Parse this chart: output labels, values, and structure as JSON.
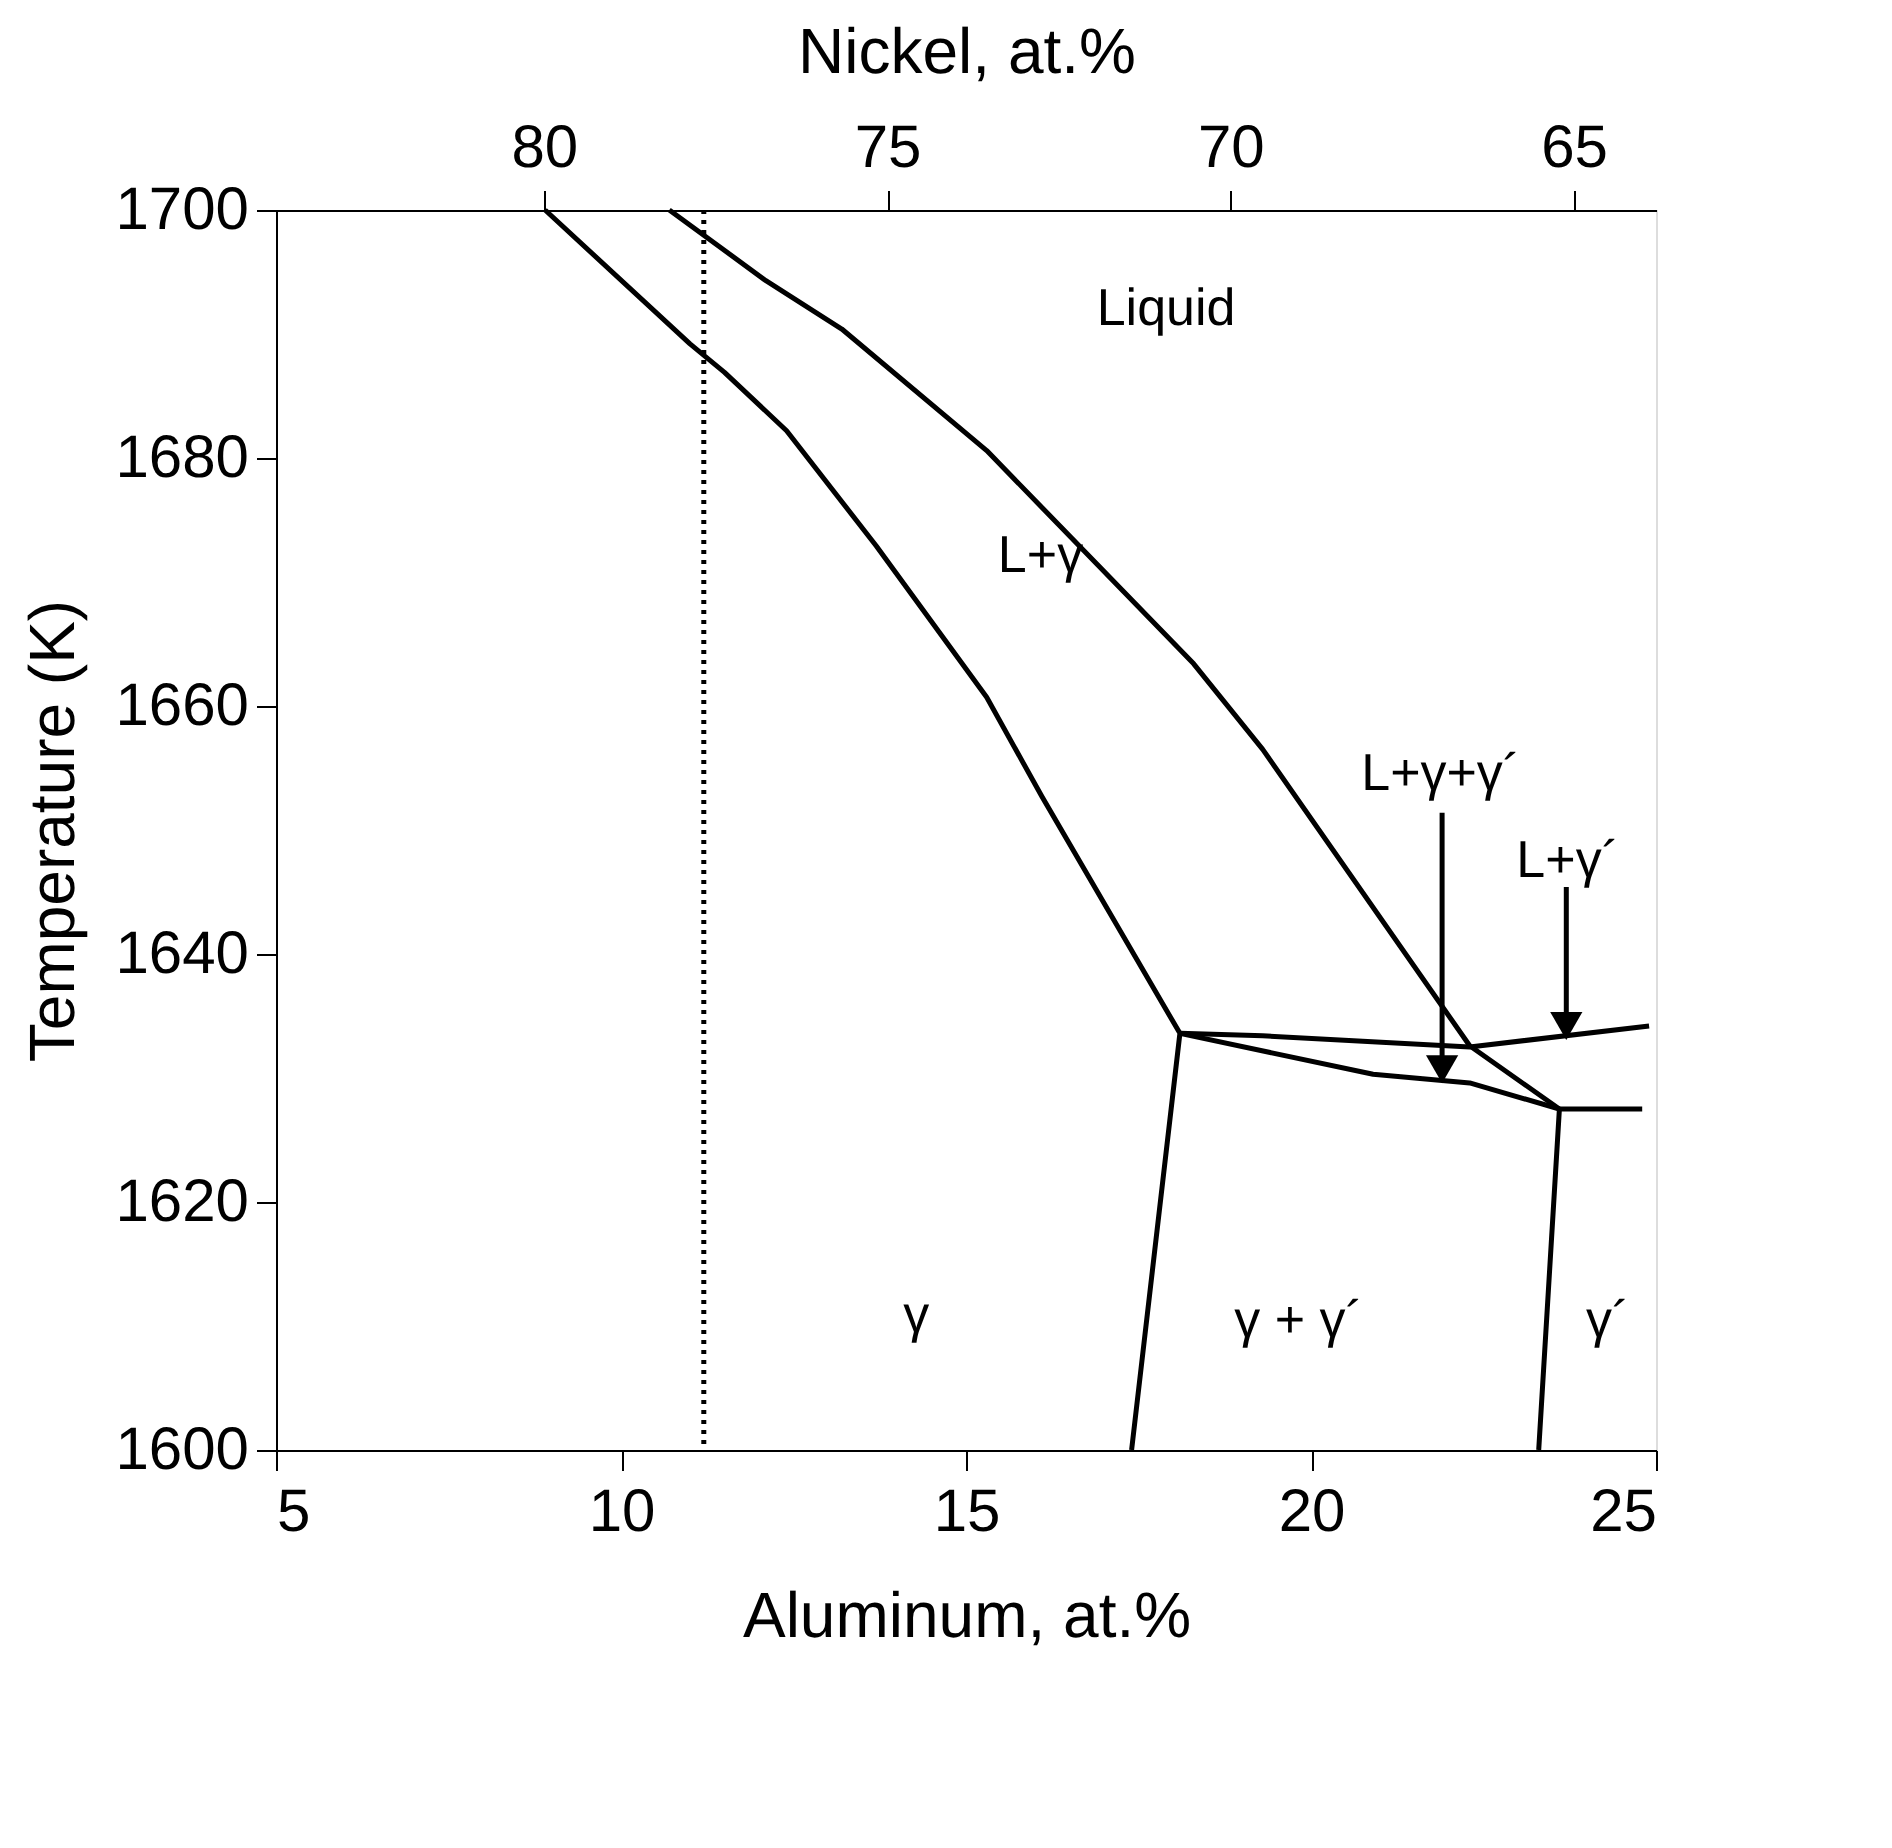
{
  "chart_data": {
    "type": "line",
    "xlabel": "Aluminum, at.%",
    "ylabel": "Temperature (K)",
    "x2label": "Nickel, at.%",
    "xlim": [
      5,
      25
    ],
    "xticks": [
      5,
      10,
      15,
      20,
      25
    ],
    "ylim": [
      1600,
      1700
    ],
    "yticks": [
      1600,
      1620,
      1640,
      1660,
      1680,
      1700
    ],
    "x2lim": [
      83.9,
      63.8
    ],
    "x2ticks": [
      80,
      75,
      70,
      65
    ],
    "grid": false,
    "legend": false,
    "marker": "none",
    "line_style": "solid",
    "series": [
      {
        "color": "#000000",
        "x": [
          8.9,
          11.0,
          11.5,
          12.4,
          13.7,
          15.3,
          16.1,
          17.2,
          18.1,
          17.4
        ],
        "values": [
          1700,
          1689.2,
          1686.9,
          1682.2,
          1672.9,
          1660.7,
          1652.7,
          1642.2,
          1633.6,
          1600
        ]
      },
      {
        "color": "#000000",
        "x": [
          10.7,
          12.1,
          13.2,
          15.3,
          18.3,
          19.3,
          22.3,
          23.6,
          23.3
        ],
        "values": [
          1700,
          1694.3,
          1690.4,
          1680.6,
          1663.4,
          1656.5,
          1632.6,
          1627.5,
          1600
        ]
      },
      {
        "color": "#000000",
        "x": [
          18.1,
          19.3,
          22.3,
          24.9
        ],
        "values": [
          1633.6,
          1633.4,
          1632.5,
          1634.2
        ]
      },
      {
        "color": "#000000",
        "x": [
          18.1,
          20.9,
          22.3,
          23.6,
          24.8
        ],
        "values": [
          1633.6,
          1630.3,
          1629.6,
          1627.5,
          1627.5
        ]
      },
      {
        "color": "#000000",
        "marker": "triangle",
        "x": [
          21.9,
          21.9
        ],
        "values": [
          1651.4,
          1630.7
        ]
      },
      {
        "color": "#000000",
        "marker": "triangle",
        "x": [
          23.7,
          23.7
        ],
        "values": [
          1645.4,
          1634.2
        ]
      }
    ],
    "ref_lines": [
      {
        "axis": "x",
        "value": 11.2,
        "color": "#000000",
        "line_style": "dotted"
      }
    ],
    "annotations": [
      "Liquid",
      "L+γ",
      "L+γ+γ´",
      "L+γ´",
      "γ",
      "γ + γ´",
      "γ´"
    ]
  }
}
